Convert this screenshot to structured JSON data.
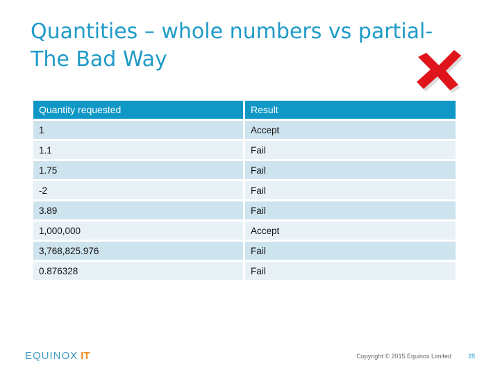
{
  "slide": {
    "title_line1": "Quantities – whole numbers vs partial-",
    "title_line2": "The Bad Way"
  },
  "table": {
    "headers": [
      "Quantity requested",
      "Result"
    ],
    "rows": [
      [
        "1",
        "Accept"
      ],
      [
        "1.1",
        "Fail"
      ],
      [
        "1.75",
        "Fail"
      ],
      [
        "-2",
        "Fail"
      ],
      [
        "3.89",
        "Fail"
      ],
      [
        "1,000,000",
        "Accept"
      ],
      [
        "3,768,825.976",
        "Fail"
      ],
      [
        "0.876328",
        "Fail"
      ]
    ]
  },
  "footer": {
    "logo_main": "EQUINOX",
    "logo_suffix": "IT",
    "copyright": "Copyright © 2015 Equinox Limited",
    "page_number": "28"
  },
  "icons": {
    "cross_mark": "red-cross-icon"
  },
  "colors": {
    "title": "#1f9bc8",
    "table_header": "#0f97c5",
    "row_odd": "#cde3ee",
    "row_even": "#e7f1f6",
    "cross": "#e0141b",
    "logo_accent": "#f08a1c"
  }
}
